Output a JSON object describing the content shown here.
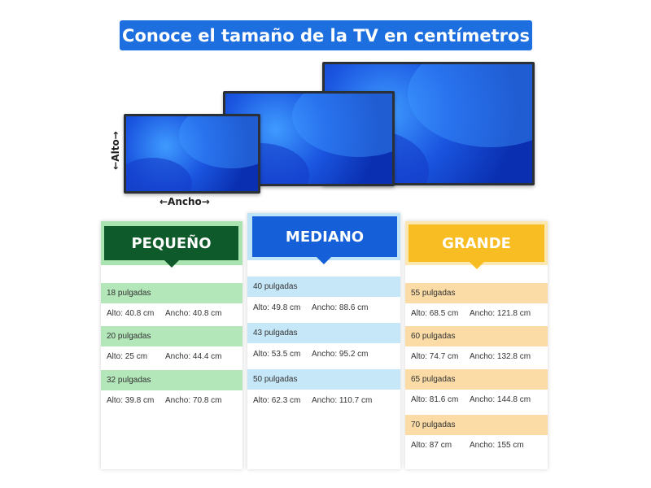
{
  "title": "Conoce el tamaño de la TV en centímetros",
  "labels": {
    "alto": "←Alto→",
    "ancho": "←Ancho→"
  },
  "colors": {
    "title": "#1d6fe0",
    "green": "#0f5a2a",
    "blue": "#1560d8",
    "yellow": "#f8bd22"
  },
  "categories": [
    {
      "name": "PEQUEÑO",
      "rows": [
        {
          "size": "18 pulgadas",
          "alto": "Alto: 40.8 cm",
          "ancho": "Ancho: 40.8 cm"
        },
        {
          "size": "20 pulgadas",
          "alto": "Alto: 25 cm",
          "ancho": "Ancho: 44.4 cm"
        },
        {
          "size": "32 pulgadas",
          "alto": "Alto: 39.8 cm",
          "ancho": "Ancho: 70.8 cm"
        }
      ]
    },
    {
      "name": "MEDIANO",
      "rows": [
        {
          "size": "40 pulgadas",
          "alto": "Alto: 49.8 cm",
          "ancho": "Ancho: 88.6 cm"
        },
        {
          "size": "43 pulgadas",
          "alto": "Alto: 53.5 cm",
          "ancho": "Ancho: 95.2 cm"
        },
        {
          "size": "50 pulgadas",
          "alto": "Alto: 62.3 cm",
          "ancho": "Ancho: 110.7 cm"
        }
      ]
    },
    {
      "name": "GRANDE",
      "rows": [
        {
          "size": "55 pulgadas",
          "alto": "Alto: 68.5 cm",
          "ancho": "Ancho: 121.8 cm"
        },
        {
          "size": "60 pulgadas",
          "alto": "Alto: 74.7 cm",
          "ancho": "Ancho: 132.8 cm"
        },
        {
          "size": "65 pulgadas",
          "alto": "Alto: 81.6 cm",
          "ancho": "Ancho: 144.8 cm"
        },
        {
          "size": "70 pulgadas",
          "alto": "Alto: 87 cm",
          "ancho": "Ancho: 155 cm"
        }
      ]
    }
  ]
}
